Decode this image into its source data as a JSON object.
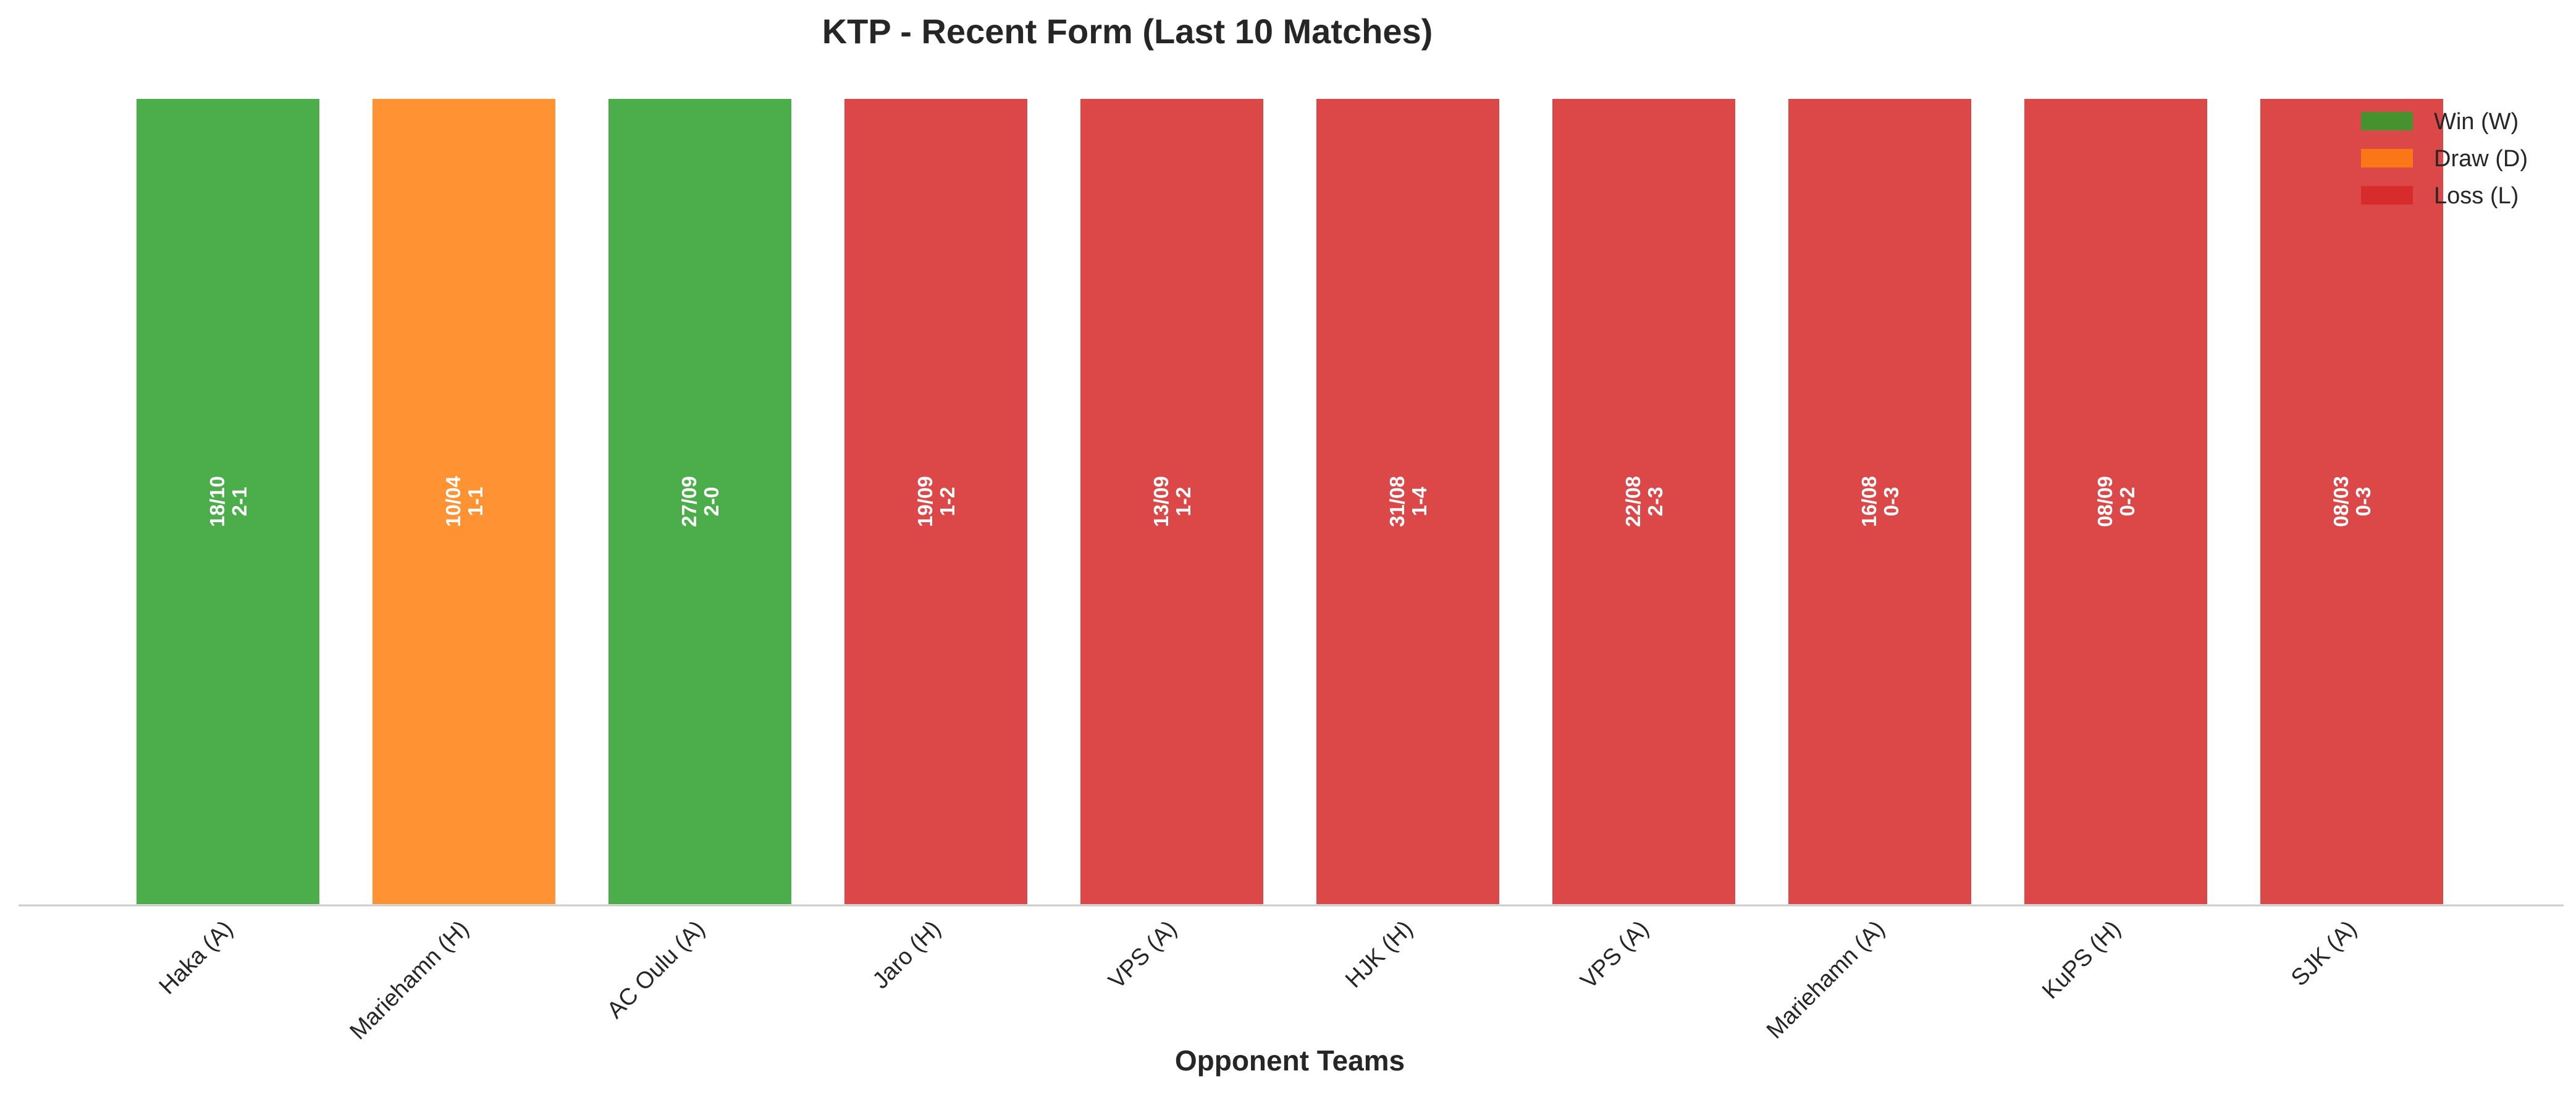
{
  "chart_data": {
    "type": "bar",
    "title": "KTP - Recent Form (Last 10 Matches)",
    "xlabel": "Opponent Teams",
    "ylabel": "",
    "ylim": [
      0,
      1
    ],
    "categories": [
      "Haka (A)",
      "Mariehamn (H)",
      "AC Oulu (A)",
      "Jaro (H)",
      "VPS (A)",
      "HJK (H)",
      "VPS (A)",
      "Mariehamn (A)",
      "KuPS (H)",
      "SJK (A)"
    ],
    "values": [
      1,
      1,
      1,
      1,
      1,
      1,
      1,
      1,
      1,
      1
    ],
    "results": [
      "W",
      "D",
      "W",
      "L",
      "L",
      "L",
      "L",
      "L",
      "L",
      "L"
    ],
    "dates": [
      "18/10",
      "10/04",
      "27/09",
      "19/09",
      "13/09",
      "31/08",
      "22/08",
      "16/08",
      "08/09",
      "08/03"
    ],
    "scores": [
      "2-1",
      "1-1",
      "2-0",
      "1-2",
      "1-2",
      "1-4",
      "2-3",
      "0-3",
      "0-2",
      "0-3"
    ],
    "legend": {
      "position": "top-right",
      "entries": [
        {
          "key": "W",
          "label": "Win (W)",
          "color": "#2ca02c"
        },
        {
          "key": "D",
          "label": "Draw (D)",
          "color": "#ff7f0e"
        },
        {
          "key": "L",
          "label": "Loss (L)",
          "color": "#d62728"
        }
      ]
    },
    "grid": false
  }
}
